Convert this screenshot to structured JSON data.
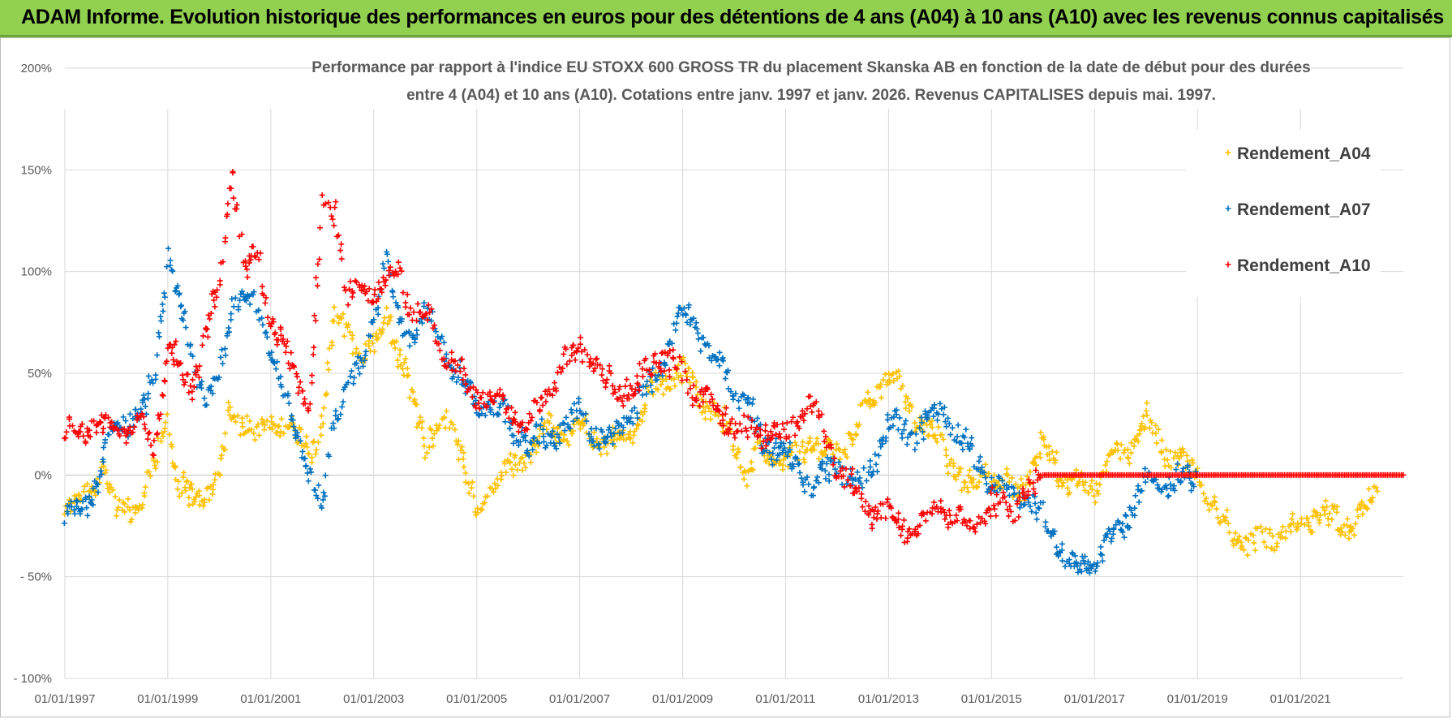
{
  "banner": {
    "title": "ADAM Informe. Evolution historique des performances en euros pour des détentions de 4 ans (A04) à 10 ans (A10) avec les revenus connus capitalisés"
  },
  "chart_data": {
    "type": "scatter",
    "title_line1": "Performance par rapport à l'indice EU STOXX 600 GROSS TR  du placement Skanska AB en fonction de la date de début pour des durées",
    "title_line2": "entre 4 (A04) et 10 ans (A10).  Cotations entre janv. 1997 et janv. 2026. Revenus CAPITALISES depuis mai. 1997.",
    "x_axis": {
      "type": "date",
      "range": [
        "1997-01-01",
        "2023-01-01"
      ],
      "tick_labels": [
        "01/01/1997",
        "01/01/1999",
        "01/01/2001",
        "01/01/2003",
        "01/01/2005",
        "01/01/2007",
        "01/01/2009",
        "01/01/2011",
        "01/01/2013",
        "01/01/2015",
        "01/01/2017",
        "01/01/2019",
        "01/01/2021"
      ]
    },
    "y_axis": {
      "range": [
        -100,
        200
      ],
      "unit": "%",
      "tick_values": [
        200,
        150,
        100,
        50,
        0,
        -50,
        -100
      ],
      "tick_labels": [
        "200%",
        "150%",
        "100%",
        "50%",
        "0%",
        "- 50%",
        "- 100%"
      ]
    },
    "grid": true,
    "legend_position": "top-right",
    "series": [
      {
        "name": "Rendement_A04",
        "color": "#ffc000",
        "marker": "+",
        "points": [
          [
            "1997-01-01",
            -18
          ],
          [
            "1997-07-01",
            -8
          ],
          [
            "1997-10-01",
            5
          ],
          [
            "1998-01-01",
            -20
          ],
          [
            "1998-07-01",
            -12
          ],
          [
            "1998-10-01",
            5
          ],
          [
            "1999-01-01",
            30
          ],
          [
            "1999-03-01",
            -5
          ],
          [
            "1999-07-01",
            -12
          ],
          [
            "2000-01-01",
            -2
          ],
          [
            "2000-03-01",
            25
          ],
          [
            "2000-07-01",
            28
          ],
          [
            "2000-10-01",
            20
          ],
          [
            "2001-01-01",
            30
          ],
          [
            "2001-07-01",
            20
          ],
          [
            "2001-10-01",
            12
          ],
          [
            "2002-01-01",
            25
          ],
          [
            "2002-04-01",
            80
          ],
          [
            "2002-07-01",
            72
          ],
          [
            "2002-10-01",
            55
          ],
          [
            "2003-01-01",
            65
          ],
          [
            "2003-04-01",
            80
          ],
          [
            "2003-07-01",
            55
          ],
          [
            "2003-10-01",
            40
          ],
          [
            "2004-01-01",
            15
          ],
          [
            "2004-07-01",
            30
          ],
          [
            "2005-01-01",
            -20
          ],
          [
            "2005-04-01",
            -5
          ],
          [
            "2005-07-01",
            0
          ],
          [
            "2006-01-01",
            10
          ],
          [
            "2006-07-01",
            25
          ],
          [
            "2006-10-01",
            20
          ],
          [
            "2007-01-01",
            25
          ],
          [
            "2007-07-01",
            15
          ],
          [
            "2008-01-01",
            20
          ],
          [
            "2008-07-01",
            45
          ],
          [
            "2009-01-01",
            50
          ],
          [
            "2009-07-01",
            35
          ],
          [
            "2010-01-01",
            15
          ],
          [
            "2010-04-01",
            0
          ],
          [
            "2010-07-01",
            10
          ],
          [
            "2011-01-01",
            5
          ],
          [
            "2011-07-01",
            15
          ],
          [
            "2012-01-01",
            10
          ],
          [
            "2012-07-01",
            30
          ],
          [
            "2013-01-01",
            50
          ],
          [
            "2013-07-01",
            30
          ],
          [
            "2014-01-01",
            15
          ],
          [
            "2014-07-01",
            -5
          ],
          [
            "2015-01-01",
            0
          ],
          [
            "2015-07-01",
            -10
          ],
          [
            "2016-01-01",
            15
          ],
          [
            "2016-07-01",
            -5
          ],
          [
            "2017-01-01",
            -5
          ],
          [
            "2017-07-01",
            10
          ],
          [
            "2018-01-01",
            25
          ],
          [
            "2018-07-01",
            10
          ],
          [
            "2019-01-01",
            0
          ],
          [
            "2019-07-01",
            -25
          ],
          [
            "2020-01-01",
            -35
          ],
          [
            "2020-07-01",
            -30
          ],
          [
            "2021-01-01",
            -25
          ],
          [
            "2021-07-01",
            -20
          ],
          [
            "2022-01-01",
            -25
          ],
          [
            "2022-07-01",
            -8
          ]
        ]
      },
      {
        "name": "Rendement_A07",
        "color": "#0070c0",
        "marker": "+",
        "points": [
          [
            "1997-01-01",
            -22
          ],
          [
            "1997-07-01",
            -12
          ],
          [
            "1998-01-01",
            25
          ],
          [
            "1998-07-01",
            30
          ],
          [
            "1998-10-01",
            50
          ],
          [
            "1999-01-01",
            110
          ],
          [
            "1999-04-01",
            80
          ],
          [
            "1999-07-01",
            55
          ],
          [
            "1999-10-01",
            40
          ],
          [
            "2000-01-01",
            45
          ],
          [
            "2000-04-01",
            85
          ],
          [
            "2000-07-01",
            90
          ],
          [
            "2000-10-01",
            80
          ],
          [
            "2001-01-01",
            60
          ],
          [
            "2001-07-01",
            20
          ],
          [
            "2002-01-01",
            -15
          ],
          [
            "2002-04-01",
            30
          ],
          [
            "2002-07-01",
            45
          ],
          [
            "2002-10-01",
            50
          ],
          [
            "2003-01-01",
            80
          ],
          [
            "2003-04-01",
            110
          ],
          [
            "2003-07-01",
            70
          ],
          [
            "2003-10-01",
            70
          ],
          [
            "2004-01-01",
            80
          ],
          [
            "2004-07-01",
            55
          ],
          [
            "2005-01-01",
            35
          ],
          [
            "2005-07-01",
            30
          ],
          [
            "2006-01-01",
            15
          ],
          [
            "2006-07-01",
            20
          ],
          [
            "2007-01-01",
            30
          ],
          [
            "2007-07-01",
            15
          ],
          [
            "2008-01-01",
            30
          ],
          [
            "2008-07-01",
            50
          ],
          [
            "2009-01-01",
            80
          ],
          [
            "2009-04-01",
            75
          ],
          [
            "2009-07-01",
            60
          ],
          [
            "2010-01-01",
            45
          ],
          [
            "2010-07-01",
            20
          ],
          [
            "2011-01-01",
            10
          ],
          [
            "2011-07-01",
            -5
          ],
          [
            "2012-01-01",
            5
          ],
          [
            "2012-07-01",
            -5
          ],
          [
            "2013-01-01",
            25
          ],
          [
            "2013-07-01",
            20
          ],
          [
            "2014-01-01",
            35
          ],
          [
            "2014-07-01",
            15
          ],
          [
            "2015-01-01",
            -5
          ],
          [
            "2015-07-01",
            -10
          ],
          [
            "2016-01-01",
            -20
          ],
          [
            "2016-07-01",
            -45
          ],
          [
            "2017-01-01",
            -42
          ],
          [
            "2017-07-01",
            -25
          ],
          [
            "2018-01-01",
            -5
          ],
          [
            "2018-07-01",
            -5
          ],
          [
            "2019-01-01",
            0
          ]
        ]
      },
      {
        "name": "Rendement_A10",
        "color": "#ff0000",
        "marker": "+",
        "points": [
          [
            "1997-01-01",
            20
          ],
          [
            "1997-07-01",
            25
          ],
          [
            "1998-01-01",
            20
          ],
          [
            "1998-07-01",
            25
          ],
          [
            "1998-10-01",
            15
          ],
          [
            "1999-01-01",
            65
          ],
          [
            "1999-04-01",
            50
          ],
          [
            "1999-07-01",
            45
          ],
          [
            "2000-01-01",
            95
          ],
          [
            "2000-04-01",
            150
          ],
          [
            "2000-07-01",
            100
          ],
          [
            "2000-10-01",
            110
          ],
          [
            "2001-01-01",
            75
          ],
          [
            "2001-07-01",
            50
          ],
          [
            "2001-10-01",
            30
          ],
          [
            "2002-01-01",
            135
          ],
          [
            "2002-04-01",
            130
          ],
          [
            "2002-07-01",
            85
          ],
          [
            "2002-10-01",
            90
          ],
          [
            "2003-01-01",
            90
          ],
          [
            "2003-07-01",
            100
          ],
          [
            "2003-10-01",
            80
          ],
          [
            "2004-01-01",
            80
          ],
          [
            "2004-07-01",
            55
          ],
          [
            "2005-01-01",
            40
          ],
          [
            "2005-07-01",
            35
          ],
          [
            "2006-01-01",
            25
          ],
          [
            "2006-07-01",
            45
          ],
          [
            "2007-01-01",
            65
          ],
          [
            "2007-07-01",
            45
          ],
          [
            "2008-01-01",
            40
          ],
          [
            "2008-07-01",
            60
          ],
          [
            "2009-01-01",
            50
          ],
          [
            "2009-07-01",
            35
          ],
          [
            "2010-01-01",
            25
          ],
          [
            "2010-07-01",
            20
          ],
          [
            "2011-01-01",
            20
          ],
          [
            "2011-07-01",
            35
          ],
          [
            "2012-01-01",
            5
          ],
          [
            "2012-07-01",
            -15
          ],
          [
            "2013-01-01",
            -20
          ],
          [
            "2013-07-01",
            -30
          ],
          [
            "2014-01-01",
            -15
          ],
          [
            "2014-07-01",
            -25
          ],
          [
            "2015-01-01",
            -15
          ],
          [
            "2015-07-01",
            -15
          ],
          [
            "2016-01-01",
            0
          ],
          [
            "2017-01-01",
            0
          ],
          [
            "2018-01-01",
            0
          ],
          [
            "2019-01-01",
            0
          ],
          [
            "2020-01-01",
            0
          ],
          [
            "2021-01-01",
            0
          ],
          [
            "2022-01-01",
            0
          ],
          [
            "2023-01-01",
            0
          ]
        ]
      }
    ]
  }
}
